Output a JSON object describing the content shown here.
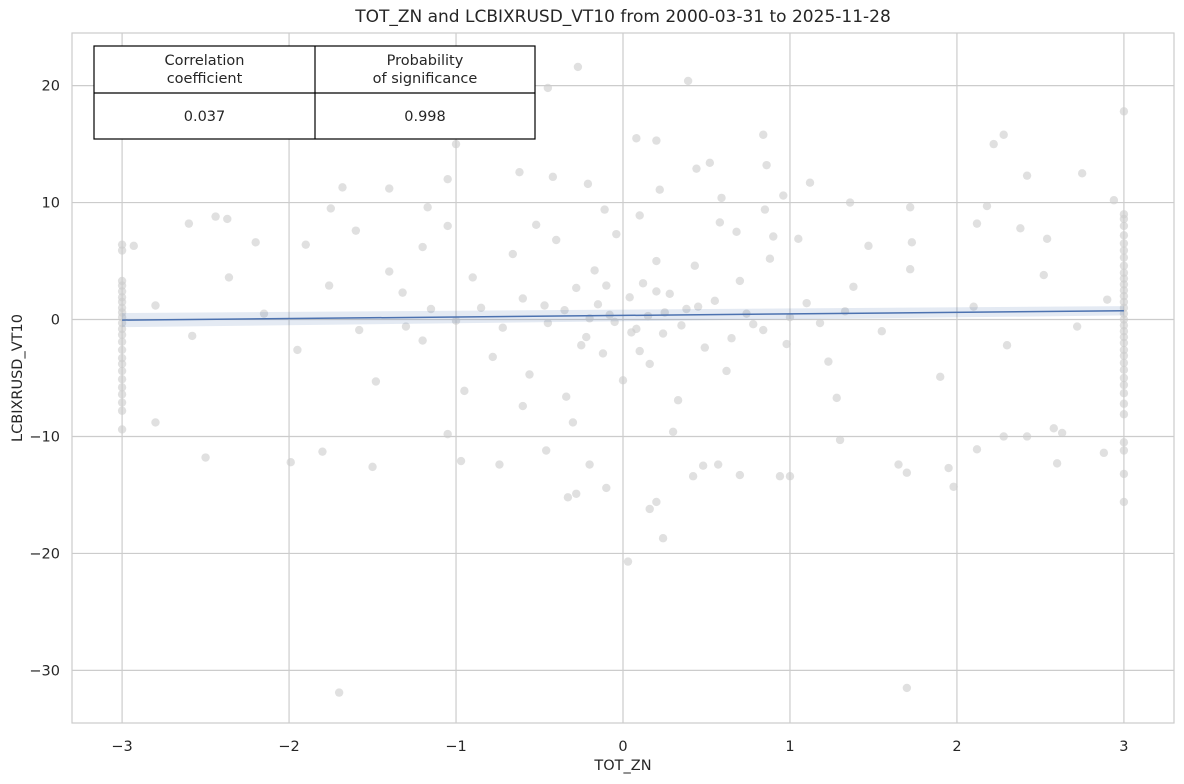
{
  "chart_data": {
    "type": "scatter",
    "title": "TOT_ZN and LCBIXRUSD_VT10 from 2000-03-31 to 2025-11-28",
    "xlabel": "TOT_ZN",
    "ylabel": "LCBIXRUSD_VT10",
    "xlim": [
      -3.3,
      3.3
    ],
    "ylim": [
      -34.5,
      24.5
    ],
    "xticks": [
      -3,
      -2,
      -1,
      0,
      1,
      2,
      3
    ],
    "xtick_labels": [
      "−3",
      "−2",
      "−1",
      "0",
      "1",
      "2",
      "3"
    ],
    "yticks": [
      -30,
      -20,
      -10,
      0,
      10,
      20
    ],
    "ytick_labels": [
      "−30",
      "−20",
      "−10",
      "0",
      "10",
      "20"
    ],
    "grid": true,
    "point_color": "#cccccc",
    "line_color": "#4c72b0",
    "points": [
      [
        -3,
        6.4
      ],
      [
        -3,
        5.9
      ],
      [
        -3,
        3.3
      ],
      [
        -3,
        2.9
      ],
      [
        -3,
        2.4
      ],
      [
        -3,
        1.9
      ],
      [
        -3,
        1.5
      ],
      [
        -3,
        1.0
      ],
      [
        -3,
        0.6
      ],
      [
        -3,
        0.2
      ],
      [
        -3,
        -0.3
      ],
      [
        -3,
        -0.8
      ],
      [
        -3,
        -1.3
      ],
      [
        -3,
        -1.9
      ],
      [
        -3,
        -2.6
      ],
      [
        -3,
        -3.3
      ],
      [
        -3,
        -3.8
      ],
      [
        -3,
        -4.4
      ],
      [
        -3,
        -5.1
      ],
      [
        -3,
        -5.8
      ],
      [
        -3,
        -6.4
      ],
      [
        -3,
        -7.1
      ],
      [
        -3,
        -7.8
      ],
      [
        -3,
        -9.4
      ],
      [
        3,
        17.8
      ],
      [
        3,
        9.0
      ],
      [
        3,
        8.6
      ],
      [
        3,
        8.0
      ],
      [
        3,
        7.2
      ],
      [
        3,
        6.5
      ],
      [
        3,
        5.9
      ],
      [
        3,
        5.3
      ],
      [
        3,
        4.6
      ],
      [
        3,
        4.0
      ],
      [
        3,
        3.5
      ],
      [
        3,
        3.0
      ],
      [
        3,
        2.5
      ],
      [
        3,
        2.0
      ],
      [
        3,
        1.5
      ],
      [
        3,
        1.0
      ],
      [
        3,
        0.5
      ],
      [
        3,
        0.0
      ],
      [
        3,
        -0.5
      ],
      [
        3,
        -1.0
      ],
      [
        3,
        -1.5
      ],
      [
        3,
        -2.0
      ],
      [
        3,
        -2.6
      ],
      [
        3,
        -3.1
      ],
      [
        3,
        -3.7
      ],
      [
        3,
        -4.3
      ],
      [
        3,
        -5.0
      ],
      [
        3,
        -5.6
      ],
      [
        3,
        -6.3
      ],
      [
        3,
        -7.2
      ],
      [
        3,
        -8.1
      ],
      [
        3,
        -10.5
      ],
      [
        3,
        -11.2
      ],
      [
        3,
        -13.2
      ],
      [
        3,
        -15.6
      ],
      [
        -0.27,
        21.6
      ],
      [
        0.39,
        20.4
      ],
      [
        -0.45,
        19.8
      ],
      [
        -1.0,
        15.0
      ],
      [
        0.08,
        15.5
      ],
      [
        0.2,
        15.3
      ],
      [
        0.84,
        15.8
      ],
      [
        2.28,
        15.8
      ],
      [
        2.22,
        15.0
      ],
      [
        0.52,
        13.4
      ],
      [
        0.44,
        12.9
      ],
      [
        0.86,
        13.2
      ],
      [
        1.12,
        11.7
      ],
      [
        -1.68,
        11.3
      ],
      [
        -1.4,
        11.2
      ],
      [
        -0.62,
        12.6
      ],
      [
        -0.42,
        12.2
      ],
      [
        -1.05,
        12.0
      ],
      [
        2.42,
        12.3
      ],
      [
        -0.21,
        11.6
      ],
      [
        0.22,
        11.1
      ],
      [
        0.59,
        10.4
      ],
      [
        0.96,
        10.6
      ],
      [
        1.36,
        10.0
      ],
      [
        2.75,
        12.5
      ],
      [
        2.94,
        10.2
      ],
      [
        2.18,
        9.7
      ],
      [
        1.72,
        9.6
      ],
      [
        0.85,
        9.4
      ],
      [
        -0.11,
        9.4
      ],
      [
        -1.17,
        9.6
      ],
      [
        -1.75,
        9.5
      ],
      [
        -2.6,
        8.2
      ],
      [
        -2.37,
        8.6
      ],
      [
        -2.44,
        8.8
      ],
      [
        2.12,
        8.2
      ],
      [
        2.38,
        7.8
      ],
      [
        2.54,
        6.9
      ],
      [
        -2.93,
        6.3
      ],
      [
        1.73,
        6.6
      ],
      [
        0.68,
        7.5
      ],
      [
        0.9,
        7.1
      ],
      [
        -1.05,
        8.0
      ],
      [
        -1.6,
        7.6
      ],
      [
        -2.2,
        6.6
      ],
      [
        -1.9,
        6.4
      ],
      [
        -2.8,
        -8.8
      ],
      [
        -2.5,
        -11.8
      ],
      [
        -1.99,
        -12.2
      ],
      [
        -1.8,
        -11.3
      ],
      [
        -1.5,
        -12.6
      ],
      [
        -1.05,
        -9.8
      ],
      [
        -0.97,
        -12.1
      ],
      [
        -0.74,
        -12.4
      ],
      [
        -0.46,
        -11.2
      ],
      [
        -0.33,
        -15.2
      ],
      [
        -0.28,
        -14.9
      ],
      [
        -0.1,
        -14.4
      ],
      [
        -0.2,
        -12.4
      ],
      [
        0.16,
        -16.2
      ],
      [
        0.2,
        -15.6
      ],
      [
        0.24,
        -18.7
      ],
      [
        0.03,
        -20.7
      ],
      [
        0.42,
        -13.4
      ],
      [
        0.48,
        -12.5
      ],
      [
        0.57,
        -12.4
      ],
      [
        0.7,
        -13.3
      ],
      [
        0.94,
        -13.4
      ],
      [
        1.0,
        -13.4
      ],
      [
        1.3,
        -10.3
      ],
      [
        1.65,
        -12.4
      ],
      [
        1.7,
        -13.1
      ],
      [
        1.95,
        -12.7
      ],
      [
        1.98,
        -14.3
      ],
      [
        2.12,
        -11.1
      ],
      [
        2.58,
        -9.3
      ],
      [
        2.63,
        -9.7
      ],
      [
        2.88,
        -11.4
      ],
      [
        2.6,
        -12.3
      ],
      [
        2.42,
        -10.0
      ],
      [
        2.28,
        -10.0
      ],
      [
        -1.7,
        -31.9
      ],
      [
        1.7,
        -31.5
      ],
      [
        -1.4,
        4.1
      ],
      [
        -1.32,
        2.3
      ],
      [
        -1.2,
        -1.8
      ],
      [
        -0.9,
        3.6
      ],
      [
        -0.78,
        -3.2
      ],
      [
        -0.66,
        5.6
      ],
      [
        -0.56,
        -4.7
      ],
      [
        -0.47,
        1.2
      ],
      [
        -0.4,
        6.8
      ],
      [
        -0.34,
        -6.6
      ],
      [
        -0.28,
        2.7
      ],
      [
        -0.22,
        -1.5
      ],
      [
        -0.17,
        4.2
      ],
      [
        -0.12,
        -2.9
      ],
      [
        -0.08,
        0.4
      ],
      [
        -0.04,
        7.3
      ],
      [
        0.0,
        -5.2
      ],
      [
        0.04,
        1.9
      ],
      [
        0.08,
        -0.8
      ],
      [
        0.12,
        3.1
      ],
      [
        0.16,
        -3.8
      ],
      [
        0.2,
        5.0
      ],
      [
        0.24,
        -1.2
      ],
      [
        0.28,
        2.2
      ],
      [
        0.33,
        -6.9
      ],
      [
        0.38,
        0.9
      ],
      [
        0.43,
        4.6
      ],
      [
        0.49,
        -2.4
      ],
      [
        0.55,
        1.6
      ],
      [
        0.62,
        -4.4
      ],
      [
        0.7,
        3.3
      ],
      [
        0.78,
        -0.4
      ],
      [
        0.88,
        5.2
      ],
      [
        0.98,
        -2.1
      ],
      [
        1.1,
        1.4
      ],
      [
        1.23,
        -3.6
      ],
      [
        1.38,
        2.8
      ],
      [
        1.55,
        -1.0
      ],
      [
        1.72,
        4.3
      ],
      [
        1.9,
        -4.9
      ],
      [
        2.1,
        1.1
      ],
      [
        2.3,
        -2.2
      ],
      [
        2.52,
        3.8
      ],
      [
        2.72,
        -0.6
      ],
      [
        2.9,
        1.7
      ],
      [
        -1.58,
        -0.9
      ],
      [
        -1.76,
        2.9
      ],
      [
        -1.95,
        -2.6
      ],
      [
        -2.15,
        0.5
      ],
      [
        -2.36,
        3.6
      ],
      [
        -2.58,
        -1.4
      ],
      [
        -2.8,
        1.2
      ],
      [
        -0.6,
        -7.4
      ],
      [
        -0.52,
        8.1
      ],
      [
        -0.3,
        -8.8
      ],
      [
        0.1,
        8.9
      ],
      [
        0.3,
        -9.6
      ],
      [
        0.58,
        8.3
      ],
      [
        -0.95,
        -6.1
      ],
      [
        1.05,
        6.9
      ],
      [
        -1.2,
        6.2
      ],
      [
        1.28,
        -6.7
      ],
      [
        -1.48,
        -5.3
      ],
      [
        1.47,
        6.3
      ],
      [
        -0.2,
        0.1
      ],
      [
        0.15,
        0.3
      ],
      [
        -0.05,
        -0.2
      ],
      [
        0.25,
        0.6
      ],
      [
        -0.15,
        1.3
      ],
      [
        0.05,
        -1.1
      ],
      [
        -0.35,
        0.8
      ],
      [
        0.35,
        -0.5
      ],
      [
        -0.45,
        -0.3
      ],
      [
        0.45,
        1.1
      ],
      [
        -0.25,
        -2.2
      ],
      [
        0.2,
        2.4
      ],
      [
        -0.1,
        2.9
      ],
      [
        0.1,
        -2.7
      ],
      [
        -0.6,
        1.8
      ],
      [
        0.65,
        -1.6
      ],
      [
        -0.72,
        -0.7
      ],
      [
        0.74,
        0.5
      ],
      [
        -0.85,
        1.0
      ],
      [
        0.84,
        -0.9
      ],
      [
        -1.0,
        -0.1
      ],
      [
        1.0,
        0.2
      ],
      [
        -1.15,
        0.9
      ],
      [
        1.18,
        -0.3
      ],
      [
        -1.3,
        -0.6
      ],
      [
        1.33,
        0.7
      ]
    ],
    "fit_line": {
      "x": [
        -3,
        3
      ],
      "y": [
        -0.05,
        0.75
      ]
    },
    "table": {
      "headers": [
        "Correlation\ncoefficient",
        "Probability\nof significance"
      ],
      "values": [
        "0.037",
        "0.998"
      ]
    }
  }
}
